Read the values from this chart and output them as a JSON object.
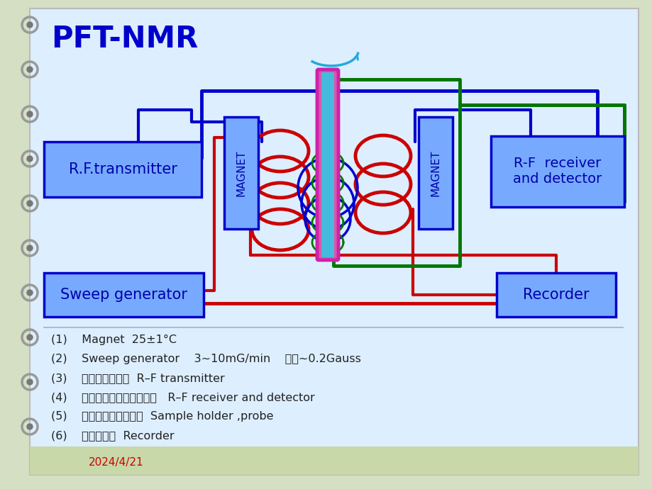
{
  "title": "PFT-NMR",
  "title_color": "#0000CC",
  "title_fontsize": 30,
  "bg_color": "#d4dfc4",
  "panel_color": "#ddeeff",
  "red": "#cc0000",
  "blue": "#0000cc",
  "green": "#007700",
  "cyan": "#22aadd",
  "magenta": "#cc22aa",
  "pink_fill": "#dd55aa",
  "cyan_fill": "#44bbdd",
  "box_fill": "#77aaff",
  "box_text": "#0000aa",
  "box_border": "#0000cc",
  "date_text": "2024/4/21",
  "date_color": "#cc0000",
  "annotations": [
    "(1)    Magnet  25±1°C",
    "(2)    Sweep generator    3~10mG/min    全程~0.2Gauss",
    "(3)    （射频发生器）  R–F transmitter",
    "(4)    （射频接收器和检测器）   R–F receiver and detector",
    "(5)    （样品支架，探头）  Sample holder ,probe",
    "(6)    （记录仪）  Recorder"
  ]
}
